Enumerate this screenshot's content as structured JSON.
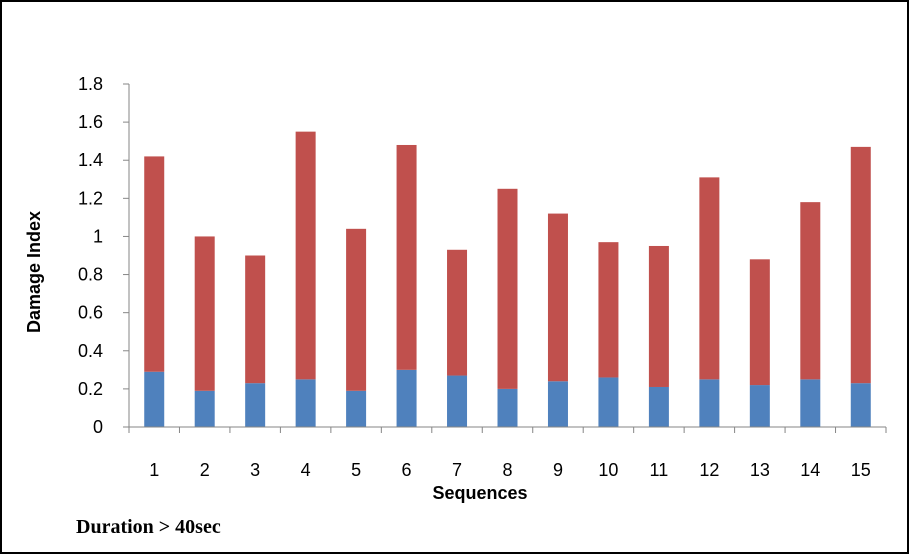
{
  "chart_data": {
    "type": "bar",
    "stacked": true,
    "categories": [
      "1",
      "2",
      "3",
      "4",
      "5",
      "6",
      "7",
      "8",
      "9",
      "10",
      "11",
      "12",
      "13",
      "14",
      "15"
    ],
    "series": [
      {
        "values": [
          0.29,
          0.19,
          0.23,
          0.25,
          0.19,
          0.3,
          0.27,
          0.2,
          0.24,
          0.26,
          0.21,
          0.25,
          0.22,
          0.25,
          0.23
        ],
        "color": "#4f81bd"
      },
      {
        "values": [
          1.13,
          0.81,
          0.67,
          1.3,
          0.85,
          1.18,
          0.66,
          1.05,
          0.88,
          0.71,
          0.74,
          1.06,
          0.66,
          0.93,
          1.24
        ],
        "color": "#c0504d"
      }
    ],
    "xlabel": "Sequences",
    "ylabel": "Damage Index",
    "ylim": [
      0,
      1.8
    ],
    "yticks": [
      "0",
      "0.2",
      "0.4",
      "0.6",
      "0.8",
      "1",
      "1.2",
      "1.4",
      "1.6",
      "1.8"
    ],
    "grid": false,
    "legend": "none"
  },
  "caption": "Duration > 40sec"
}
